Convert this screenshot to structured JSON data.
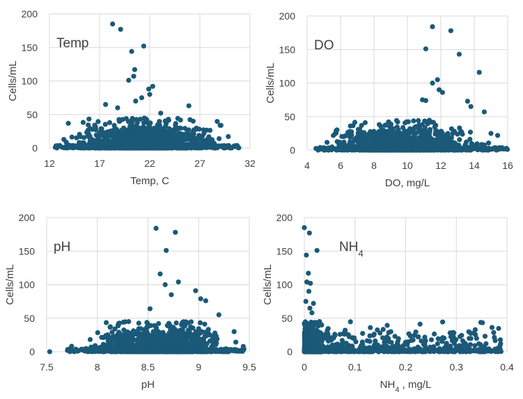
{
  "point_color": "#1b5978",
  "chart_data": [
    {
      "type": "scatter",
      "title": "Temp",
      "xlabel": "Temp, C",
      "ylabel": "Cells/mL",
      "xlim": [
        12,
        32
      ],
      "ylim": [
        0,
        200
      ],
      "x_ticks": [
        12,
        17,
        22,
        27,
        32
      ],
      "y_ticks": [
        0,
        50,
        100,
        150,
        200
      ],
      "grid": true,
      "legend": "none",
      "notable_points": [
        {
          "x": 18.3,
          "y": 185
        },
        {
          "x": 19.1,
          "y": 177
        },
        {
          "x": 21.4,
          "y": 152
        },
        {
          "x": 20.2,
          "y": 144
        },
        {
          "x": 20.5,
          "y": 117
        },
        {
          "x": 20.4,
          "y": 107
        },
        {
          "x": 19.9,
          "y": 101
        },
        {
          "x": 22.3,
          "y": 92
        },
        {
          "x": 21.9,
          "y": 88
        },
        {
          "x": 22.0,
          "y": 80
        },
        {
          "x": 21.2,
          "y": 75
        },
        {
          "x": 20.6,
          "y": 70
        },
        {
          "x": 17.6,
          "y": 65
        },
        {
          "x": 25.9,
          "y": 63
        },
        {
          "x": 18.8,
          "y": 60
        },
        {
          "x": 23.1,
          "y": 52
        }
      ],
      "bulk": {
        "x_range": [
          12.5,
          31
        ],
        "peak_x": 21,
        "typical_max_y": 30
      }
    },
    {
      "type": "scatter",
      "title": "DO",
      "xlabel": "DO, mg/L",
      "ylabel": "Cells/mL",
      "xlim": [
        4,
        16
      ],
      "ylim": [
        0,
        200
      ],
      "x_ticks": [
        4,
        6,
        8,
        10,
        12,
        14,
        16
      ],
      "y_ticks": [
        0,
        50,
        100,
        150,
        200
      ],
      "grid": true,
      "legend": "none",
      "notable_points": [
        {
          "x": 11.5,
          "y": 184
        },
        {
          "x": 12.6,
          "y": 178
        },
        {
          "x": 11.1,
          "y": 151
        },
        {
          "x": 13.1,
          "y": 143
        },
        {
          "x": 14.3,
          "y": 116
        },
        {
          "x": 11.8,
          "y": 105
        },
        {
          "x": 11.5,
          "y": 100
        },
        {
          "x": 11.9,
          "y": 90
        },
        {
          "x": 12.1,
          "y": 86
        },
        {
          "x": 10.9,
          "y": 75
        },
        {
          "x": 11.1,
          "y": 74
        },
        {
          "x": 13.6,
          "y": 73
        },
        {
          "x": 13.8,
          "y": 65
        },
        {
          "x": 14.6,
          "y": 57
        },
        {
          "x": 15.0,
          "y": 25
        },
        {
          "x": 15.4,
          "y": 22
        }
      ],
      "bulk": {
        "x_range": [
          4.5,
          16
        ],
        "peak_x": 9,
        "typical_max_y": 30
      }
    },
    {
      "type": "scatter",
      "title": "pH",
      "xlabel": "pH",
      "ylabel": "Cells/mL",
      "xlim": [
        7.5,
        9.5
      ],
      "ylim": [
        0,
        200
      ],
      "x_ticks": [
        7.5,
        8,
        8.5,
        9,
        9.5
      ],
      "y_ticks": [
        0,
        50,
        100,
        150,
        200
      ],
      "grid": true,
      "legend": "none",
      "notable_points": [
        {
          "x": 8.58,
          "y": 184
        },
        {
          "x": 8.77,
          "y": 178
        },
        {
          "x": 8.68,
          "y": 151
        },
        {
          "x": 8.62,
          "y": 116
        },
        {
          "x": 8.8,
          "y": 104
        },
        {
          "x": 8.67,
          "y": 100
        },
        {
          "x": 8.97,
          "y": 91
        },
        {
          "x": 8.73,
          "y": 85
        },
        {
          "x": 9.02,
          "y": 79
        },
        {
          "x": 9.07,
          "y": 76
        },
        {
          "x": 8.52,
          "y": 64
        },
        {
          "x": 9.2,
          "y": 55
        },
        {
          "x": 9.35,
          "y": 30
        },
        {
          "x": 9.44,
          "y": 8
        },
        {
          "x": 7.53,
          "y": 0
        }
      ],
      "bulk": {
        "x_range": [
          7.7,
          9.45
        ],
        "peak_x": 8.7,
        "typical_max_y": 30
      }
    },
    {
      "type": "scatter",
      "title": "NH4",
      "xlabel": "NH4 , mg/L",
      "ylabel": "Cells/mL",
      "xlim": [
        0,
        0.4
      ],
      "ylim": [
        0,
        200
      ],
      "x_ticks": [
        0,
        0.1,
        0.2,
        0.3,
        0.4
      ],
      "y_ticks": [
        0,
        50,
        100,
        150,
        200
      ],
      "grid": true,
      "legend": "none",
      "notable_points": [
        {
          "x": 0.0,
          "y": 185
        },
        {
          "x": 0.01,
          "y": 177
        },
        {
          "x": 0.025,
          "y": 151
        },
        {
          "x": 0.004,
          "y": 144
        },
        {
          "x": 0.008,
          "y": 117
        },
        {
          "x": 0.005,
          "y": 104
        },
        {
          "x": 0.012,
          "y": 102
        },
        {
          "x": 0.009,
          "y": 90
        },
        {
          "x": 0.003,
          "y": 75
        },
        {
          "x": 0.018,
          "y": 72
        },
        {
          "x": 0.011,
          "y": 65
        },
        {
          "x": 0.015,
          "y": 58
        },
        {
          "x": 0.03,
          "y": 45
        },
        {
          "x": 0.05,
          "y": 20
        }
      ],
      "bulk": {
        "x_range": [
          0,
          0.39
        ],
        "peak_x": 0.02,
        "typical_max_y": 30
      }
    }
  ]
}
